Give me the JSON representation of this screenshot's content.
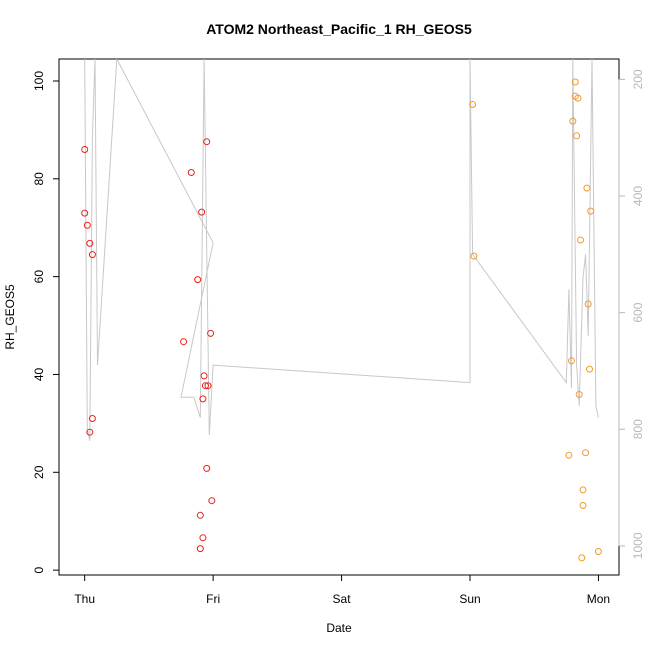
{
  "chart_data": {
    "type": "scatter",
    "title": "ATOM2 Northeast_Pacific_1 RH_GEOS5",
    "xlabel": "Date",
    "ylabel": "RH_GEOS5",
    "x_ticks": [
      "Thu",
      "Fri",
      "Sat",
      "Sun",
      "Mon"
    ],
    "x_tick_values": [
      0,
      1,
      2,
      3,
      4
    ],
    "xlim": [
      -0.2,
      4.16
    ],
    "ylim": [
      -1,
      104.5
    ],
    "y_ticks": [
      0,
      20,
      40,
      60,
      80,
      100
    ],
    "y2_ticks": [
      200,
      400,
      600,
      800,
      1000
    ],
    "y2lim": [
      1050,
      165
    ],
    "grid": false,
    "colors": {
      "series1": "#e8231e",
      "series2": "#f49a26",
      "line": "#c8c8c8",
      "right_axis": "#b8b8b8"
    },
    "series": [
      {
        "color": "#e8231e",
        "points": [
          [
            0.0,
            86
          ],
          [
            0.0,
            73
          ],
          [
            0.02,
            70.5
          ],
          [
            0.04,
            66.8
          ],
          [
            0.06,
            64.5
          ],
          [
            0.06,
            31
          ],
          [
            0.04,
            28.2
          ],
          [
            0.77,
            46.7
          ],
          [
            0.83,
            81.3
          ],
          [
            0.88,
            59.4
          ],
          [
            0.91,
            73.2
          ],
          [
            0.92,
            35
          ],
          [
            0.93,
            39.7
          ],
          [
            0.94,
            37.7
          ],
          [
            0.95,
            87.6
          ],
          [
            0.96,
            37.7
          ],
          [
            0.98,
            48.4
          ],
          [
            0.95,
            20.8
          ],
          [
            0.99,
            14.2
          ],
          [
            0.9,
            11.2
          ],
          [
            0.92,
            6.6
          ],
          [
            0.9,
            4.4
          ]
        ]
      },
      {
        "color": "#f49a26",
        "points": [
          [
            3.02,
            95.2
          ],
          [
            3.03,
            64.2
          ],
          [
            3.77,
            23.5
          ],
          [
            3.79,
            42.8
          ],
          [
            3.8,
            91.8
          ],
          [
            3.82,
            99.8
          ],
          [
            3.82,
            96.9
          ],
          [
            3.83,
            88.8
          ],
          [
            3.84,
            96.5
          ],
          [
            3.85,
            35.9
          ],
          [
            3.86,
            67.5
          ],
          [
            3.87,
            2.5
          ],
          [
            3.88,
            16.4
          ],
          [
            3.88,
            13.2
          ],
          [
            3.9,
            24
          ],
          [
            3.91,
            78.1
          ],
          [
            3.92,
            54.4
          ],
          [
            3.93,
            41.1
          ],
          [
            3.94,
            73.4
          ],
          [
            4.0,
            3.8
          ]
        ]
      }
    ],
    "altitude_line": {
      "color": "#c8c8c8",
      "axis": "right",
      "points": [
        [
          0.0,
          165
        ],
        [
          0.02,
          800
        ],
        [
          0.04,
          820
        ],
        [
          0.06,
          300
        ],
        [
          0.08,
          165
        ],
        [
          0.1,
          690
        ],
        [
          0.25,
          165
        ],
        [
          1.0,
          480
        ],
        [
          0.75,
          745
        ],
        [
          0.85,
          745
        ],
        [
          0.9,
          780
        ],
        [
          0.93,
          165
        ],
        [
          0.97,
          810
        ],
        [
          1.0,
          690
        ],
        [
          3.0,
          720
        ],
        [
          3.0,
          165
        ],
        [
          3.02,
          500
        ],
        [
          3.75,
          720
        ],
        [
          3.77,
          560
        ],
        [
          3.79,
          730
        ],
        [
          3.8,
          165
        ],
        [
          3.83,
          690
        ],
        [
          3.85,
          760
        ],
        [
          3.88,
          540
        ],
        [
          3.9,
          500
        ],
        [
          3.92,
          640
        ],
        [
          3.95,
          165
        ],
        [
          3.98,
          760
        ],
        [
          4.0,
          780
        ]
      ]
    }
  }
}
